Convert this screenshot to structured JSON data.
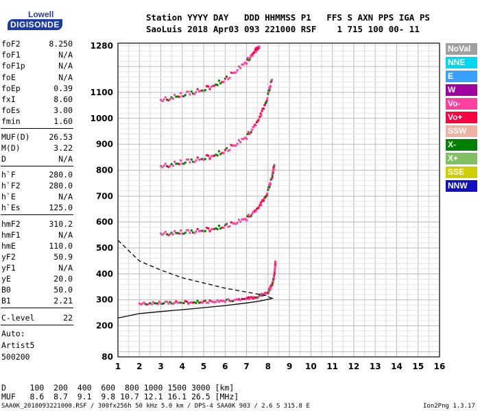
{
  "logo": {
    "line1": "Lowell",
    "line2": "DIGISONDE"
  },
  "header": {
    "row1": "Station YYYY DAY   DDD HHMMSS P1   FFS S AXN PPS IGA PS",
    "row2": "SaoLuis 2018 Apr03 093 221000 RSF    1 715 100 00- 11"
  },
  "params": [
    {
      "name": "foF2",
      "value": "8.250"
    },
    {
      "name": "foF1",
      "value": "N/A"
    },
    {
      "name": "foF1p",
      "value": "N/A"
    },
    {
      "name": "foE",
      "value": "N/A"
    },
    {
      "name": "foEp",
      "value": "0.39"
    },
    {
      "name": "fxI",
      "value": "8.60"
    },
    {
      "name": "foEs",
      "value": "3.00"
    },
    {
      "name": "fmin",
      "value": "1.60"
    },
    {
      "name": "MUF(D)",
      "value": "26.53"
    },
    {
      "name": "M(D)",
      "value": "3.22"
    },
    {
      "name": "D",
      "value": "N/A"
    },
    {
      "name": "h`F",
      "value": "280.0"
    },
    {
      "name": "h`F2",
      "value": "280.0"
    },
    {
      "name": "h`E",
      "value": "N/A"
    },
    {
      "name": "h`Es",
      "value": "125.0"
    },
    {
      "name": "hmF2",
      "value": "310.2"
    },
    {
      "name": "hmF1",
      "value": "N/A"
    },
    {
      "name": "hmE",
      "value": "110.0"
    },
    {
      "name": "yF2",
      "value": "50.9"
    },
    {
      "name": "yF1",
      "value": "N/A"
    },
    {
      "name": "yE",
      "value": "20.0"
    },
    {
      "name": "B0",
      "value": "50.0"
    },
    {
      "name": "B1",
      "value": "2.21"
    },
    {
      "name": "C-level",
      "value": "22"
    }
  ],
  "auto": {
    "line1": "Auto:",
    "line2": "Artist5",
    "line3": "500200"
  },
  "legend": [
    {
      "label": "NoVal",
      "color": "#a0a0a0"
    },
    {
      "label": "NNE",
      "color": "#00d8f0"
    },
    {
      "label": "E",
      "color": "#3aa0ff"
    },
    {
      "label": "W",
      "color": "#a000a0"
    },
    {
      "label": "Vo-",
      "color": "#ff40a0"
    },
    {
      "label": "Vo+",
      "color": "#ff0040"
    },
    {
      "label": "SSW",
      "color": "#f0b0a0"
    },
    {
      "label": "X-",
      "color": "#008000"
    },
    {
      "label": "X+",
      "color": "#80c060"
    },
    {
      "label": "SSE",
      "color": "#d0d000"
    },
    {
      "label": "NNW",
      "color": "#1010c0"
    }
  ],
  "footer": {
    "distance_row": "D     100  200  400  600  800 1000 1500 3000 [km]",
    "muf_row": "MUF   8.6  8.7  9.1  9.8 10.7 12.1 16.1 26.5 [MHz]",
    "file_line": "SAA0K_2018093221000.RSF / 300fx256h 50 kHz 5.0 km / DPS-4 SAA0K 903 / 2.6 S 315.8 E",
    "version": "Ion2Png 1.3.17"
  },
  "chart_data": {
    "type": "scatter",
    "xlim": [
      1,
      16
    ],
    "ylim": [
      80,
      1290
    ],
    "x_ticks": [
      1,
      2,
      3,
      4,
      5,
      6,
      7,
      8,
      9,
      10,
      11,
      12,
      13,
      14,
      15,
      16
    ],
    "y_ticks": [
      80,
      200,
      300,
      400,
      500,
      600,
      700,
      800,
      900,
      1000,
      1100,
      1280
    ],
    "grid": true,
    "legend_position": "right",
    "trace_f2": [
      [
        2.0,
        285
      ],
      [
        3.0,
        288
      ],
      [
        4.0,
        290
      ],
      [
        5.0,
        293
      ],
      [
        6.0,
        297
      ],
      [
        7.0,
        305
      ],
      [
        7.6,
        315
      ],
      [
        8.0,
        330
      ],
      [
        8.2,
        360
      ],
      [
        8.3,
        400
      ],
      [
        8.35,
        450
      ]
    ],
    "trace_f2_2hop": [
      [
        3.0,
        555
      ],
      [
        4.0,
        560
      ],
      [
        5.0,
        568
      ],
      [
        6.0,
        585
      ],
      [
        7.0,
        615
      ],
      [
        7.6,
        660
      ],
      [
        8.0,
        720
      ],
      [
        8.2,
        780
      ],
      [
        8.3,
        820
      ]
    ],
    "trace_f2_3hop": [
      [
        3.0,
        815
      ],
      [
        4.0,
        830
      ],
      [
        5.0,
        845
      ],
      [
        6.0,
        875
      ],
      [
        7.0,
        930
      ],
      [
        7.6,
        1000
      ],
      [
        8.0,
        1090
      ],
      [
        8.2,
        1160
      ]
    ],
    "trace_f2_4hop": [
      [
        3.0,
        1070
      ],
      [
        4.0,
        1090
      ],
      [
        5.0,
        1110
      ],
      [
        6.0,
        1150
      ],
      [
        7.0,
        1220
      ],
      [
        7.4,
        1260
      ],
      [
        7.6,
        1285
      ]
    ],
    "profile_solid": [
      [
        1.0,
        230
      ],
      [
        2.0,
        247
      ],
      [
        3.0,
        255
      ],
      [
        4.0,
        262
      ],
      [
        5.0,
        270
      ],
      [
        6.0,
        278
      ],
      [
        7.0,
        288
      ],
      [
        7.6,
        295
      ],
      [
        8.0,
        302
      ],
      [
        8.2,
        306
      ],
      [
        8.0,
        312
      ]
    ],
    "muf_dashed": [
      [
        1.0,
        530
      ],
      [
        2.0,
        450
      ],
      [
        3.0,
        415
      ],
      [
        4.0,
        385
      ],
      [
        5.0,
        365
      ],
      [
        6.0,
        345
      ],
      [
        7.0,
        330
      ],
      [
        8.0,
        315
      ]
    ]
  }
}
